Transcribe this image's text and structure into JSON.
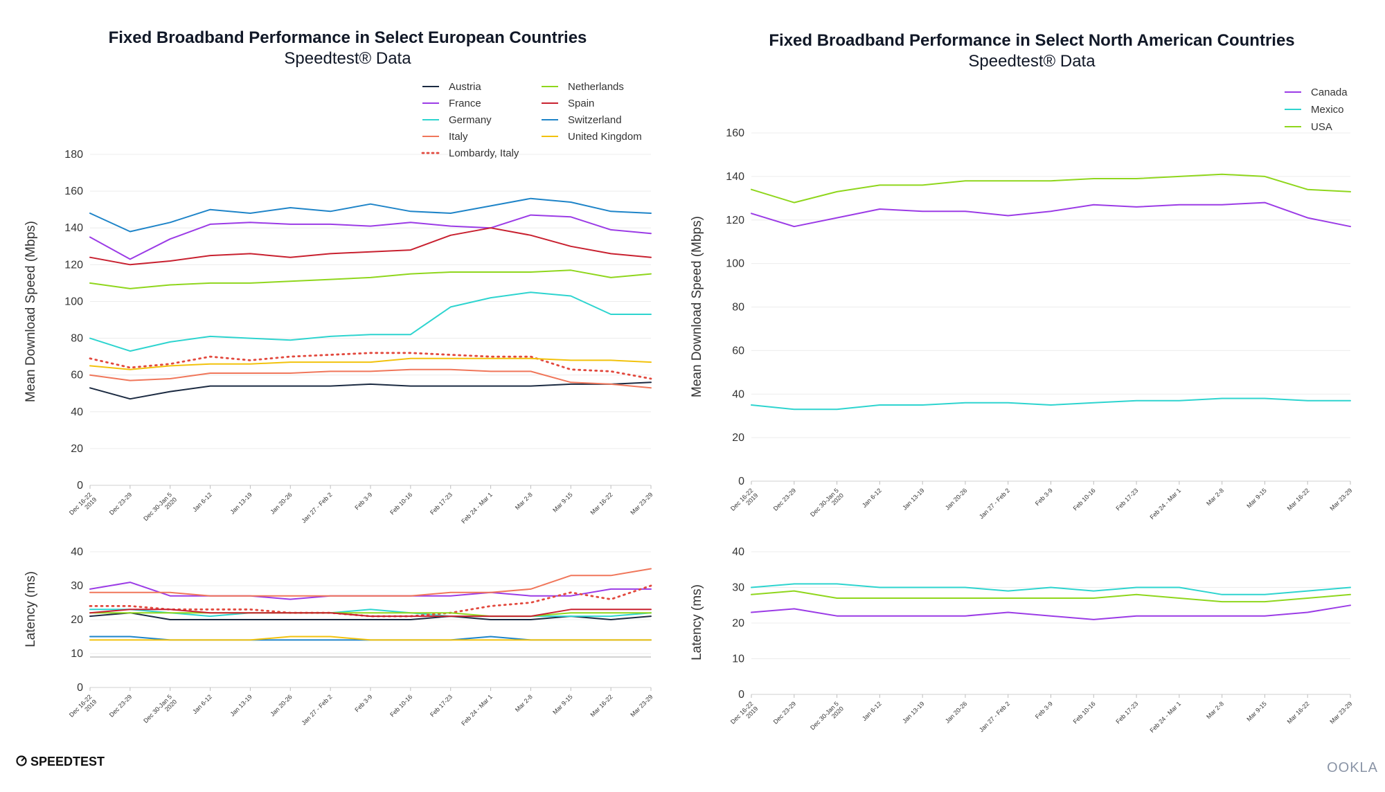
{
  "brand": {
    "left": "SPEEDTEST",
    "right": "OOKLA"
  },
  "x_categories": [
    "Dec 16-22\n2019",
    "Dec 23-29",
    "Dec 30-Jan 5\n2020",
    "Jan 6-12",
    "Jan 13-19",
    "Jan 20-26",
    "Jan 27 - Feb 2",
    "Feb 3-9",
    "Feb 10-16",
    "Feb 17-23",
    "Feb 24 - Mar 1",
    "Mar 2-8",
    "Mar 9-15",
    "Mar 16-22",
    "Mar 23-29"
  ],
  "chart_data": [
    {
      "id": "europe-download",
      "type": "line",
      "title": "Fixed Broadband Performance in Select European Countries",
      "subtitle": "Speedtest® Data",
      "ylabel": "Mean Download Speed (Mbps)",
      "xlabel": "",
      "ylim": [
        0,
        180
      ],
      "yticks": [
        0,
        20,
        40,
        60,
        80,
        100,
        120,
        140,
        160,
        180
      ],
      "legend_position": "top-right",
      "series": [
        {
          "name": "Austria",
          "color": "#1b2a41",
          "values": [
            53,
            47,
            51,
            54,
            54,
            54,
            54,
            55,
            54,
            54,
            54,
            54,
            55,
            55,
            56
          ]
        },
        {
          "name": "France",
          "color": "#9b3be6",
          "values": [
            135,
            123,
            134,
            142,
            143,
            142,
            142,
            141,
            143,
            141,
            140,
            147,
            146,
            139,
            137
          ]
        },
        {
          "name": "Germany",
          "color": "#2dd4cf",
          "values": [
            80,
            73,
            78,
            81,
            80,
            79,
            81,
            82,
            82,
            97,
            102,
            105,
            103,
            93,
            93
          ]
        },
        {
          "name": "Italy",
          "color": "#f0765a",
          "values": [
            60,
            57,
            58,
            61,
            61,
            61,
            62,
            62,
            63,
            63,
            62,
            62,
            56,
            55,
            53
          ]
        },
        {
          "name": "Lombardy, Italy",
          "color": "#e2483d",
          "dashed": true,
          "values": [
            69,
            64,
            66,
            70,
            68,
            70,
            71,
            72,
            72,
            71,
            70,
            70,
            63,
            62,
            58
          ]
        },
        {
          "name": "Netherlands",
          "color": "#8fd61c",
          "values": [
            110,
            107,
            109,
            110,
            110,
            111,
            112,
            113,
            115,
            116,
            116,
            116,
            117,
            113,
            115
          ]
        },
        {
          "name": "Spain",
          "color": "#c8202f",
          "values": [
            124,
            120,
            122,
            125,
            126,
            124,
            126,
            127,
            128,
            136,
            140,
            136,
            130,
            126,
            124
          ]
        },
        {
          "name": "Switzerland",
          "color": "#1e84c8",
          "values": [
            148,
            138,
            143,
            150,
            148,
            151,
            149,
            153,
            149,
            148,
            152,
            156,
            154,
            149,
            148
          ]
        },
        {
          "name": "United Kingdom",
          "color": "#f2c20c",
          "values": [
            65,
            63,
            65,
            66,
            66,
            67,
            67,
            67,
            69,
            69,
            69,
            69,
            68,
            68,
            67
          ]
        }
      ]
    },
    {
      "id": "europe-latency",
      "type": "line",
      "title": "",
      "ylabel": "Latency (ms)",
      "xlabel": "",
      "ylim": [
        0,
        40
      ],
      "yticks": [
        0,
        10,
        20,
        30,
        40
      ],
      "series": [
        {
          "name": "Austria",
          "color": "#1b2a41",
          "values": [
            21,
            22,
            20,
            20,
            20,
            20,
            20,
            20,
            20,
            21,
            20,
            20,
            21,
            20,
            21
          ]
        },
        {
          "name": "France",
          "color": "#9b3be6",
          "values": [
            29,
            31,
            27,
            27,
            27,
            26,
            27,
            27,
            27,
            27,
            28,
            27,
            27,
            29,
            29
          ]
        },
        {
          "name": "Germany",
          "color": "#2dd4cf",
          "values": [
            23,
            23,
            22,
            21,
            22,
            22,
            22,
            23,
            22,
            21,
            21,
            21,
            21,
            21,
            22
          ]
        },
        {
          "name": "Italy",
          "color": "#f0765a",
          "values": [
            28,
            28,
            28,
            27,
            27,
            27,
            27,
            27,
            27,
            28,
            28,
            29,
            33,
            33,
            35
          ]
        },
        {
          "name": "Lombardy, Italy",
          "color": "#e2483d",
          "dashed": true,
          "values": [
            24,
            24,
            23,
            23,
            23,
            22,
            22,
            21,
            21,
            22,
            24,
            25,
            28,
            26,
            30
          ]
        },
        {
          "name": "Netherlands",
          "color": "#8fd61c",
          "values": [
            22,
            22,
            22,
            22,
            22,
            22,
            22,
            22,
            22,
            22,
            21,
            21,
            22,
            22,
            22
          ]
        },
        {
          "name": "Spain",
          "color": "#c8202f",
          "values": [
            22,
            23,
            23,
            22,
            22,
            22,
            22,
            21,
            21,
            21,
            21,
            21,
            23,
            23,
            23
          ]
        },
        {
          "name": "Switzerland",
          "color": "#1e84c8",
          "values": [
            15,
            15,
            14,
            14,
            14,
            14,
            14,
            14,
            14,
            14,
            15,
            14,
            14,
            14,
            14
          ]
        },
        {
          "name": "United Kingdom",
          "color": "#f2c20c",
          "values": [
            14,
            14,
            14,
            14,
            14,
            15,
            15,
            14,
            14,
            14,
            14,
            14,
            14,
            14,
            14
          ]
        }
      ]
    },
    {
      "id": "na-download",
      "type": "line",
      "title": "Fixed Broadband Performance in Select North American Countries",
      "subtitle": "Speedtest® Data",
      "ylabel": "Mean Download Speed (Mbps)",
      "xlabel": "",
      "ylim": [
        0,
        160
      ],
      "yticks": [
        0,
        20,
        40,
        60,
        80,
        100,
        120,
        140,
        160
      ],
      "legend_position": "top-right",
      "series": [
        {
          "name": "Canada",
          "color": "#9b3be6",
          "values": [
            123,
            117,
            121,
            125,
            124,
            124,
            122,
            124,
            127,
            126,
            127,
            127,
            128,
            121,
            117
          ]
        },
        {
          "name": "Mexico",
          "color": "#2dd4cf",
          "values": [
            35,
            33,
            33,
            35,
            35,
            36,
            36,
            35,
            36,
            37,
            37,
            38,
            38,
            37,
            37
          ]
        },
        {
          "name": "USA",
          "color": "#8fd61c",
          "values": [
            134,
            128,
            133,
            136,
            136,
            138,
            138,
            138,
            139,
            139,
            140,
            141,
            140,
            134,
            133
          ]
        }
      ]
    },
    {
      "id": "na-latency",
      "type": "line",
      "title": "",
      "ylabel": "Latency (ms)",
      "xlabel": "",
      "ylim": [
        0,
        40
      ],
      "yticks": [
        0,
        10,
        20,
        30,
        40
      ],
      "series": [
        {
          "name": "Canada",
          "color": "#9b3be6",
          "values": [
            23,
            24,
            22,
            22,
            22,
            22,
            23,
            22,
            21,
            22,
            22,
            22,
            22,
            23,
            25
          ]
        },
        {
          "name": "Mexico",
          "color": "#2dd4cf",
          "values": [
            30,
            31,
            31,
            30,
            30,
            30,
            29,
            30,
            29,
            30,
            30,
            28,
            28,
            29,
            30
          ]
        },
        {
          "name": "USA",
          "color": "#8fd61c",
          "values": [
            28,
            29,
            27,
            27,
            27,
            27,
            27,
            27,
            27,
            28,
            27,
            26,
            26,
            27,
            28
          ]
        }
      ]
    }
  ]
}
